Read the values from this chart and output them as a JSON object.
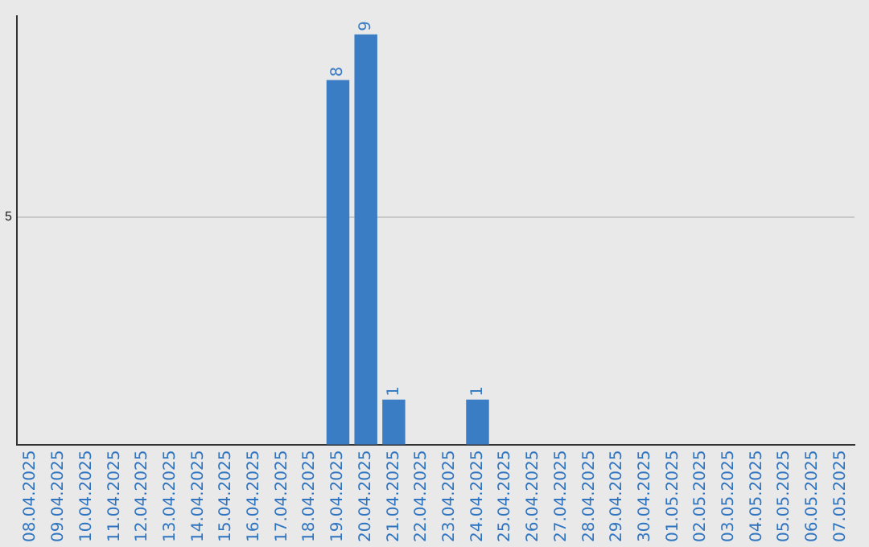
{
  "chart_data": {
    "type": "bar",
    "categories": [
      "08.04.2025",
      "09.04.2025",
      "10.04.2025",
      "11.04.2025",
      "12.04.2025",
      "13.04.2025",
      "14.04.2025",
      "15.04.2025",
      "16.04.2025",
      "17.04.2025",
      "18.04.2025",
      "19.04.2025",
      "20.04.2025",
      "21.04.2025",
      "22.04.2025",
      "23.04.2025",
      "24.04.2025",
      "25.04.2025",
      "26.04.2025",
      "27.04.2025",
      "28.04.2025",
      "29.04.2025",
      "30.04.2025",
      "01.05.2025",
      "02.05.2025",
      "03.05.2025",
      "04.05.2025",
      "05.05.2025",
      "06.05.2025",
      "07.05.2025"
    ],
    "values": [
      0,
      0,
      0,
      0,
      0,
      0,
      0,
      0,
      0,
      0,
      0,
      8,
      9,
      1,
      0,
      0,
      1,
      0,
      0,
      0,
      0,
      0,
      0,
      0,
      0,
      0,
      0,
      0,
      0,
      0
    ],
    "value_labels": [
      null,
      null,
      null,
      null,
      null,
      null,
      null,
      null,
      null,
      null,
      null,
      "8",
      "9",
      "1",
      null,
      null,
      "1",
      null,
      null,
      null,
      null,
      null,
      null,
      null,
      null,
      null,
      null,
      null,
      null,
      null
    ],
    "color": "#3b7dc4",
    "ylim": [
      0,
      9.4
    ],
    "yticks": [
      0,
      {
        "value": 5,
        "label": "5"
      }
    ],
    "grid": "y",
    "legend": false
  }
}
